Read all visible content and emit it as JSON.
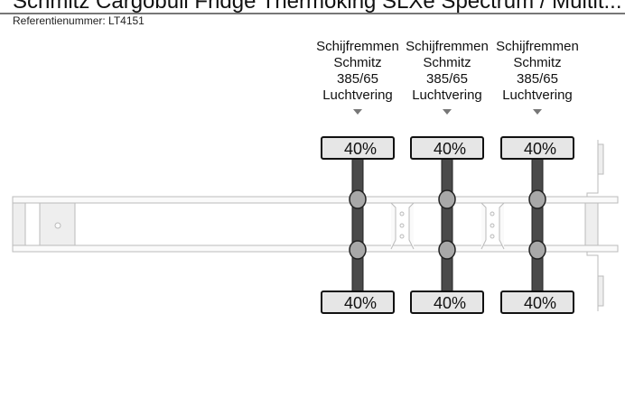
{
  "title": "Schmitz Cargobull Fridge Thermoking SLXe Spectrum / Multit...",
  "reference": "Referentienummer: LT4151",
  "axles": [
    {
      "lines": [
        "Schijfremmen",
        "Schmitz",
        "385/65",
        "Luchtvering"
      ],
      "top_tire": "40%",
      "bottom_tire": "40%"
    },
    {
      "lines": [
        "Schijfremmen",
        "Schmitz",
        "385/65",
        "Luchtvering"
      ],
      "top_tire": "40%",
      "bottom_tire": "40%"
    },
    {
      "lines": [
        "Schijfremmen",
        "Schmitz",
        "385/65",
        "Luchtvering"
      ],
      "top_tire": "40%",
      "bottom_tire": "40%"
    }
  ],
  "colors": {
    "axle": "#4a4a4a",
    "tire_fill": "#e6e6e6",
    "hub": "#a8a8a8",
    "frame": "#bbbbbb"
  }
}
